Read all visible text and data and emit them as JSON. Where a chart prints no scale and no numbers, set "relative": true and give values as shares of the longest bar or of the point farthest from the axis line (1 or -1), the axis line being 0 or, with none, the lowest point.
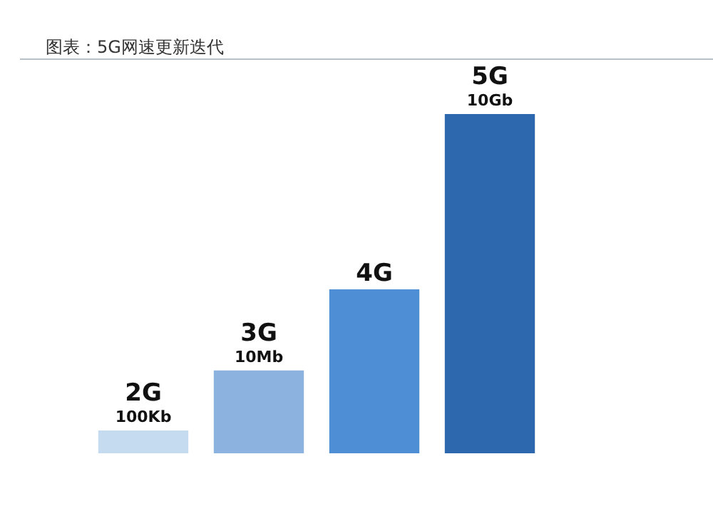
{
  "chart_data": {
    "type": "bar",
    "title": "图表：5G网速更新迭代",
    "relative": true,
    "categories": [
      "2G\n100Kb",
      "3G\n10Mb",
      "4G",
      "5G\n10Gb"
    ],
    "values": [
      0.067,
      0.244,
      0.483,
      1
    ],
    "colors": [
      "#c5dbf0",
      "#8cb3e0",
      "#4d8ed4",
      "#2d67ad"
    ],
    "legend": false
  }
}
